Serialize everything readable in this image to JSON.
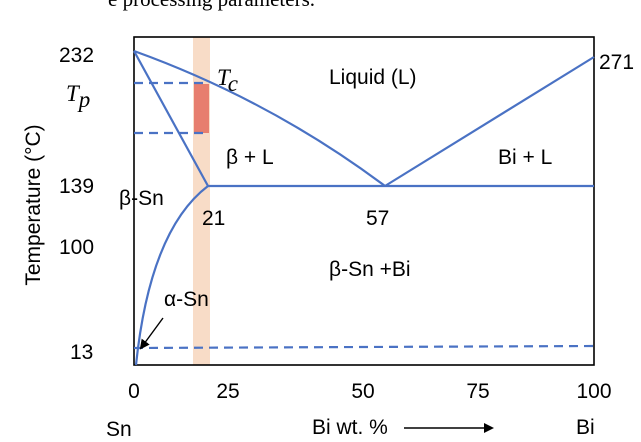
{
  "caption_fragment": "e processing parameters.",
  "axes": {
    "ylabel": "Temperature (°C)",
    "xlabel": "Bi wt. %",
    "x_ticks": [
      "0",
      "25",
      "50",
      "75",
      "100"
    ],
    "y_ticks": [
      "232",
      "139",
      "100",
      "13"
    ],
    "left_component": "Sn",
    "right_component": "Bi"
  },
  "labels": {
    "liquid": "Liquid (L)",
    "beta_l": "β + L",
    "bi_l": "Bi + L",
    "beta_sn": "β-Sn",
    "beta_sn_bi": "β-Sn +Bi",
    "alpha_sn": "α-Sn",
    "tc_main": "T",
    "tc_sub": "c",
    "tp_main": "T",
    "tp_sub": "p",
    "melt_bi": "271",
    "solubility_limit": "21",
    "eutectic": "57"
  },
  "colors": {
    "lines": "#4a72c4",
    "processing_band": "#f8dcc7",
    "processing_window": "#e77e6e",
    "arrow": "#000000"
  },
  "chart_data": {
    "type": "phase-diagram",
    "x_range": [
      0,
      100
    ],
    "x_unit": "Bi wt. %",
    "y_unit": "°C",
    "points": {
      "sn_melt": [
        0,
        232
      ],
      "bi_melt": [
        100,
        271
      ],
      "eutectic": [
        57,
        139
      ],
      "max_solubility": [
        21,
        139
      ],
      "allotropic": [
        0,
        13
      ]
    },
    "isotherms_dashed": [
      13,
      212,
      193
    ],
    "processing_band_x": [
      18,
      21
    ]
  }
}
